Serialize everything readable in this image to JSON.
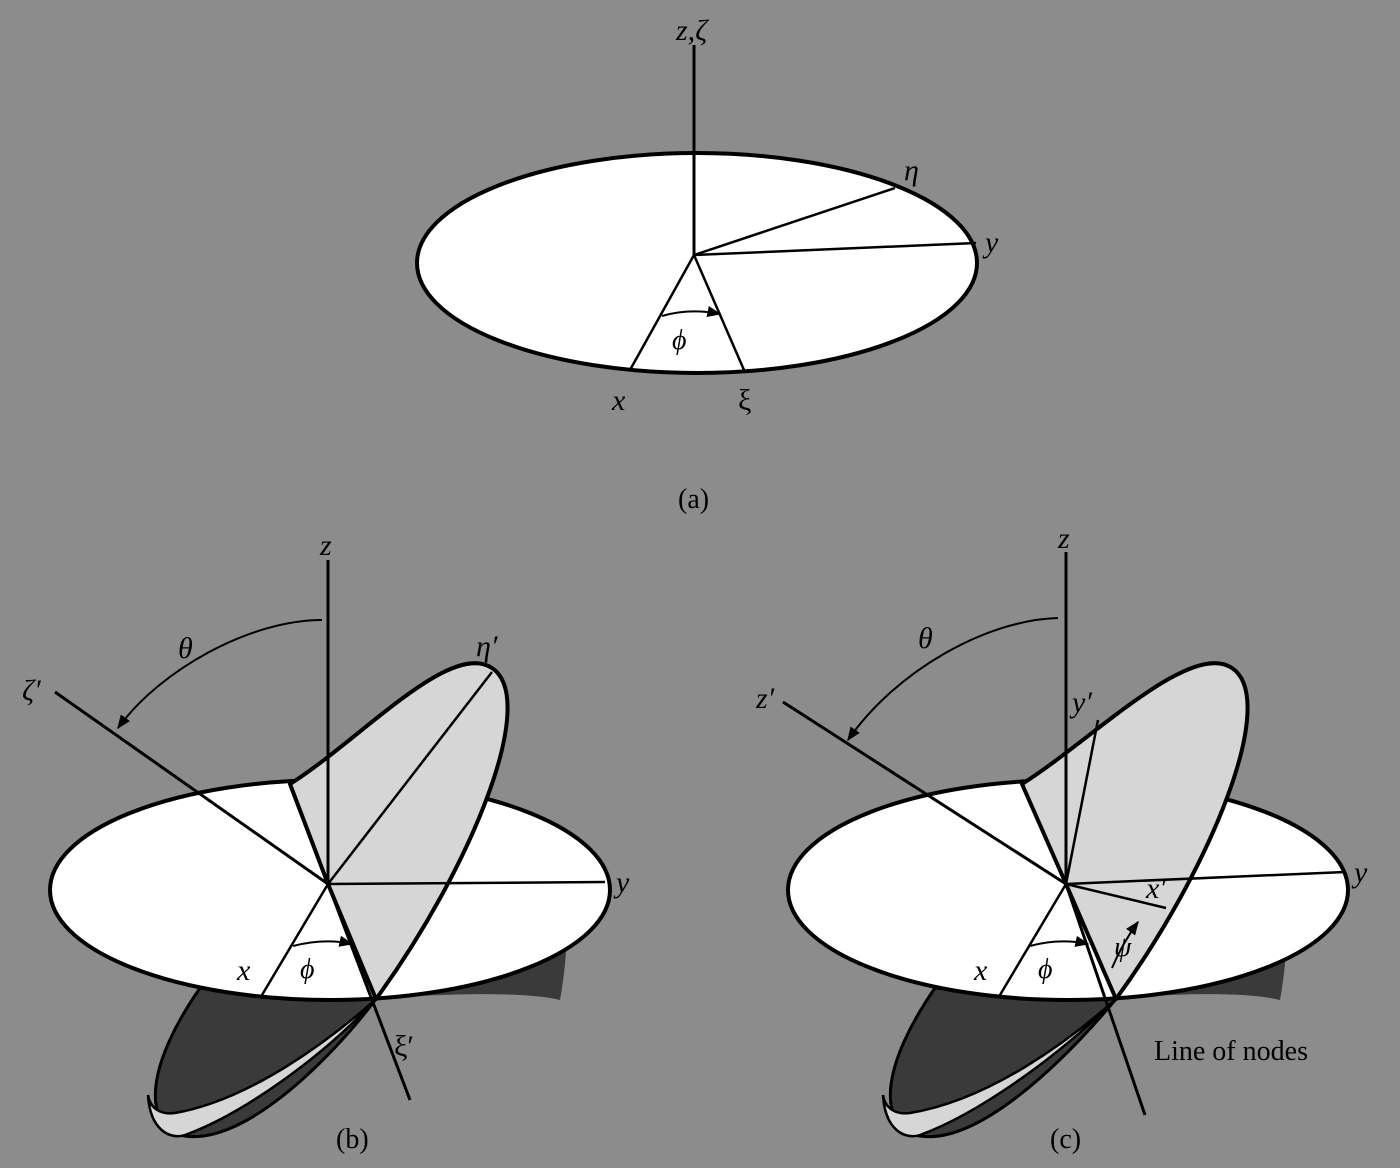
{
  "colors": {
    "background": "#8c8c8c",
    "plane_white": "#ffffff",
    "plane_light": "#d6d6d6",
    "plane_dark": "#3a3a3a",
    "ink": "#000000"
  },
  "panel_a": {
    "caption": "(a)",
    "axis_z_zeta": "z,ζ",
    "axis_eta": "η",
    "axis_y": "y",
    "angle_phi": "ϕ",
    "axis_x": "x",
    "axis_xi": "ξ"
  },
  "panel_b": {
    "caption": "(b)",
    "axis_z": "z",
    "angle_theta": "θ",
    "axis_zeta_prime": "ζ′",
    "axis_eta_prime": "η′",
    "axis_y": "y",
    "axis_x": "x",
    "angle_phi": "ϕ",
    "axis_xi_prime": "ξ′"
  },
  "panel_c": {
    "caption": "(c)",
    "axis_z": "z",
    "angle_theta": "θ",
    "axis_z_prime": "z′",
    "axis_y_prime": "y′",
    "axis_y": "y",
    "axis_x_prime": "x′",
    "angle_psi": "ψ",
    "axis_x": "x",
    "angle_phi": "ϕ",
    "line_of_nodes": "Line of nodes"
  }
}
